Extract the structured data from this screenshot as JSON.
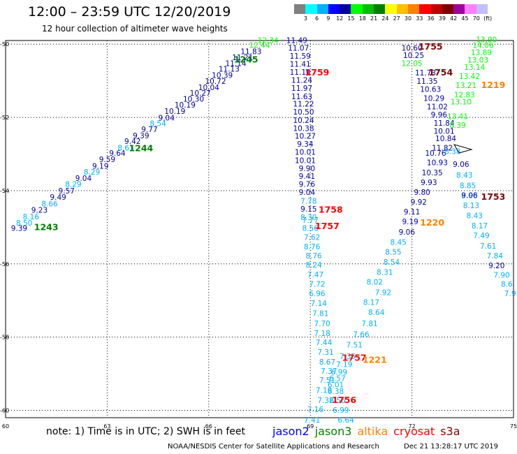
{
  "header": {
    "title": "12:00 – 23:59 UTC 12/20/2019",
    "subtitle": "12 hour collection of altimeter wave heights"
  },
  "colorbar": {
    "colors": [
      "#808080",
      "#00ffff",
      "#00b0ff",
      "#0000ff",
      "#0000a0",
      "#00ff00",
      "#00c000",
      "#008000",
      "#ffff00",
      "#ffc000",
      "#ff8000",
      "#ff0000",
      "#c00000",
      "#800000",
      "#a000a0",
      "#ff80ff",
      "#c0c0ff",
      "#ffffff"
    ],
    "labels": [
      "3",
      "6",
      "9",
      "12",
      "15",
      "18",
      "21",
      "24",
      "27",
      "30",
      "33",
      "36",
      "39",
      "42",
      "45",
      "70",
      "(ft)"
    ]
  },
  "axes": {
    "x_ticks": [
      "60",
      "63",
      "66",
      "69",
      "72",
      "75"
    ],
    "y_ticks": [
      "-50",
      "-52",
      "-54",
      "-56",
      "-58",
      "-60"
    ]
  },
  "note": "note: 1) Time is in UTC; 2) SWH is in feet",
  "legend": [
    {
      "name": "jason2",
      "color": "#0000ff"
    },
    {
      "name": "jason3",
      "color": "#008000"
    },
    {
      "name": "altika",
      "color": "#ff8000"
    },
    {
      "name": "cryosat",
      "color": "#ff0000"
    },
    {
      "name": "s3a",
      "color": "#800000"
    }
  ],
  "footer": {
    "credit": "NOAA/NESDIS Center for Satellite Applications and Research",
    "date": "Dec 21 13:28:17 UTC 2019"
  },
  "chart_data": {
    "type": "scatter",
    "xlim": [
      60,
      75
    ],
    "ylim": [
      -60.2,
      -49.9
    ],
    "grid": true,
    "colors": {
      "navy": "#0000a0",
      "blue": "#0000ff",
      "lightblue": "#00b0ff",
      "green": "#00c000",
      "lightgreen": "#00ff00",
      "darkgreen": "#008000",
      "orange": "#ff8000",
      "red": "#ff0000",
      "darkred": "#800000",
      "black": "#000000"
    },
    "time_labels": [
      {
        "x": 61.2,
        "y": -55.08,
        "text": "1243",
        "color": "darkgreen"
      },
      {
        "x": 64.0,
        "y": -52.92,
        "text": "1244",
        "color": "darkgreen"
      },
      {
        "x": 67.1,
        "y": -50.5,
        "text": "1245",
        "color": "darkgreen"
      },
      {
        "x": 69.2,
        "y": -50.85,
        "text": "1759",
        "color": "red"
      },
      {
        "x": 69.6,
        "y": -54.6,
        "text": "1758",
        "color": "red"
      },
      {
        "x": 69.5,
        "y": -55.05,
        "text": "1757",
        "color": "red"
      },
      {
        "x": 70.3,
        "y": -58.65,
        "text": "1757",
        "color": "red"
      },
      {
        "x": 70.0,
        "y": -59.8,
        "text": "1756",
        "color": "red"
      },
      {
        "x": 70.9,
        "y": -58.7,
        "text": "1221",
        "color": "orange"
      },
      {
        "x": 72.6,
        "y": -54.95,
        "text": "1220",
        "color": "orange"
      },
      {
        "x": 74.4,
        "y": -51.2,
        "text": "1219",
        "color": "orange"
      },
      {
        "x": 72.55,
        "y": -50.15,
        "text": "1755",
        "color": "darkred"
      },
      {
        "x": 72.85,
        "y": -50.85,
        "text": "1754",
        "color": "darkred"
      },
      {
        "x": 74.4,
        "y": -54.25,
        "text": "1753",
        "color": "darkred"
      }
    ],
    "points": [
      {
        "x": 60.4,
        "y": -55.1,
        "text": "9.39",
        "color": "navy"
      },
      {
        "x": 60.55,
        "y": -54.95,
        "text": "8.50",
        "color": "lightblue"
      },
      {
        "x": 60.75,
        "y": -54.78,
        "text": "8.16",
        "color": "lightblue"
      },
      {
        "x": 61.0,
        "y": -54.6,
        "text": "9.23",
        "color": "navy"
      },
      {
        "x": 61.3,
        "y": -54.43,
        "text": "8.66",
        "color": "lightblue"
      },
      {
        "x": 61.55,
        "y": -54.25,
        "text": "9.49",
        "color": "navy"
      },
      {
        "x": 61.8,
        "y": -54.08,
        "text": "9.57",
        "color": "navy"
      },
      {
        "x": 62.0,
        "y": -53.9,
        "text": "8.29",
        "color": "lightblue"
      },
      {
        "x": 62.3,
        "y": -53.73,
        "text": "9.04",
        "color": "navy"
      },
      {
        "x": 62.55,
        "y": -53.56,
        "text": "8.29",
        "color": "lightblue"
      },
      {
        "x": 62.8,
        "y": -53.4,
        "text": "9.19",
        "color": "navy"
      },
      {
        "x": 63.0,
        "y": -53.22,
        "text": "9.59",
        "color": "navy"
      },
      {
        "x": 63.3,
        "y": -53.05,
        "text": "9.64",
        "color": "navy"
      },
      {
        "x": 63.55,
        "y": -52.9,
        "text": "8.63",
        "color": "lightblue"
      },
      {
        "x": 63.75,
        "y": -52.72,
        "text": "9.42",
        "color": "navy"
      },
      {
        "x": 64.0,
        "y": -52.57,
        "text": "9.39",
        "color": "navy"
      },
      {
        "x": 64.25,
        "y": -52.4,
        "text": "9.77",
        "color": "navy"
      },
      {
        "x": 64.5,
        "y": -52.24,
        "text": "8.54",
        "color": "lightblue"
      },
      {
        "x": 64.75,
        "y": -52.08,
        "text": "9.04",
        "color": "navy"
      },
      {
        "x": 65.0,
        "y": -51.9,
        "text": "10.19",
        "color": "navy"
      },
      {
        "x": 65.3,
        "y": -51.73,
        "text": "10.19",
        "color": "navy"
      },
      {
        "x": 65.55,
        "y": -51.57,
        "text": "10.30",
        "color": "navy"
      },
      {
        "x": 65.75,
        "y": -51.41,
        "text": "10.27",
        "color": "navy"
      },
      {
        "x": 66.0,
        "y": -51.25,
        "text": "10.04",
        "color": "navy"
      },
      {
        "x": 66.2,
        "y": -51.08,
        "text": "10.72",
        "color": "navy"
      },
      {
        "x": 66.4,
        "y": -50.92,
        "text": "10.39",
        "color": "navy"
      },
      {
        "x": 66.6,
        "y": -50.75,
        "text": "11.13",
        "color": "navy"
      },
      {
        "x": 66.8,
        "y": -50.6,
        "text": "11.14",
        "color": "navy"
      },
      {
        "x": 67.0,
        "y": -50.43,
        "text": "11.21",
        "color": "navy"
      },
      {
        "x": 67.25,
        "y": -50.27,
        "text": "11.83",
        "color": "navy"
      },
      {
        "x": 67.5,
        "y": -50.1,
        "text": "12.44",
        "color": "lightgreen"
      },
      {
        "x": 67.75,
        "y": -49.97,
        "text": "12.34",
        "color": "lightgreen"
      },
      {
        "x": 68.6,
        "y": -49.97,
        "text": "11.49",
        "color": "navy"
      },
      {
        "x": 68.65,
        "y": -50.18,
        "text": "11.07",
        "color": "navy"
      },
      {
        "x": 68.7,
        "y": -50.4,
        "text": "11.59",
        "color": "navy"
      },
      {
        "x": 68.7,
        "y": -50.62,
        "text": "11.41",
        "color": "navy"
      },
      {
        "x": 68.7,
        "y": -50.83,
        "text": "11.10",
        "color": "navy"
      },
      {
        "x": 68.75,
        "y": -51.05,
        "text": "11.24",
        "color": "navy"
      },
      {
        "x": 68.75,
        "y": -51.27,
        "text": "11.97",
        "color": "navy"
      },
      {
        "x": 68.75,
        "y": -51.5,
        "text": "11.63",
        "color": "navy"
      },
      {
        "x": 68.8,
        "y": -51.7,
        "text": "11.22",
        "color": "navy"
      },
      {
        "x": 68.8,
        "y": -51.92,
        "text": "10.50",
        "color": "navy"
      },
      {
        "x": 68.8,
        "y": -52.15,
        "text": "10.24",
        "color": "navy"
      },
      {
        "x": 68.8,
        "y": -52.37,
        "text": "10.38",
        "color": "navy"
      },
      {
        "x": 68.85,
        "y": -52.58,
        "text": "10.27",
        "color": "navy"
      },
      {
        "x": 68.85,
        "y": -52.8,
        "text": "9.34",
        "color": "navy"
      },
      {
        "x": 68.85,
        "y": -53.02,
        "text": "10.01",
        "color": "navy"
      },
      {
        "x": 68.85,
        "y": -53.25,
        "text": "10.01",
        "color": "navy"
      },
      {
        "x": 68.9,
        "y": -53.47,
        "text": "9.90",
        "color": "navy"
      },
      {
        "x": 68.9,
        "y": -53.68,
        "text": "9.41",
        "color": "navy"
      },
      {
        "x": 68.9,
        "y": -53.9,
        "text": "9.76",
        "color": "navy"
      },
      {
        "x": 68.9,
        "y": -54.12,
        "text": "9.04",
        "color": "navy"
      },
      {
        "x": 68.95,
        "y": -54.35,
        "text": "7.78",
        "color": "lightblue"
      },
      {
        "x": 68.95,
        "y": -54.57,
        "text": "9.15",
        "color": "navy"
      },
      {
        "x": 68.95,
        "y": -54.8,
        "text": "8.30",
        "color": "lightblue"
      },
      {
        "x": 69.0,
        "y": -54.88,
        "text": "7.77",
        "color": "lightblue"
      },
      {
        "x": 69.0,
        "y": -55.1,
        "text": "8.56",
        "color": "lightblue"
      },
      {
        "x": 69.05,
        "y": -55.35,
        "text": "7.62",
        "color": "lightblue"
      },
      {
        "x": 69.05,
        "y": -55.6,
        "text": "8.76",
        "color": "lightblue"
      },
      {
        "x": 69.1,
        "y": -55.85,
        "text": "8.76",
        "color": "lightblue"
      },
      {
        "x": 69.1,
        "y": -56.1,
        "text": "8.24",
        "color": "lightblue"
      },
      {
        "x": 69.15,
        "y": -56.37,
        "text": "7.47",
        "color": "lightblue"
      },
      {
        "x": 69.2,
        "y": -56.62,
        "text": "7.72",
        "color": "lightblue"
      },
      {
        "x": 69.2,
        "y": -56.88,
        "text": "6.96",
        "color": "lightblue"
      },
      {
        "x": 69.25,
        "y": -57.15,
        "text": "7.14",
        "color": "lightblue"
      },
      {
        "x": 69.3,
        "y": -57.42,
        "text": "7.81",
        "color": "lightblue"
      },
      {
        "x": 69.35,
        "y": -57.7,
        "text": "7.70",
        "color": "lightblue"
      },
      {
        "x": 69.35,
        "y": -57.97,
        "text": "7.18",
        "color": "lightblue"
      },
      {
        "x": 69.4,
        "y": -58.22,
        "text": "7.44",
        "color": "lightblue"
      },
      {
        "x": 69.45,
        "y": -58.48,
        "text": "7.31",
        "color": "lightblue"
      },
      {
        "x": 69.5,
        "y": -58.75,
        "text": "8.67",
        "color": "lightblue"
      },
      {
        "x": 69.55,
        "y": -59.0,
        "text": "7.37",
        "color": "lightblue"
      },
      {
        "x": 69.5,
        "y": -59.25,
        "text": "7.51",
        "color": "lightblue"
      },
      {
        "x": 69.4,
        "y": -59.52,
        "text": "7.19",
        "color": "lightblue"
      },
      {
        "x": 69.45,
        "y": -59.8,
        "text": "7.32",
        "color": "lightblue"
      },
      {
        "x": 69.15,
        "y": -60.05,
        "text": "7.16",
        "color": "lightblue"
      },
      {
        "x": 69.05,
        "y": -60.33,
        "text": "7.41",
        "color": "lightblue"
      },
      {
        "x": 70.1,
        "y": -58.6,
        "text": "7.35",
        "color": "lightblue"
      },
      {
        "x": 70.0,
        "y": -58.82,
        "text": "7.19",
        "color": "lightblue"
      },
      {
        "x": 69.85,
        "y": -59.03,
        "text": "6.99",
        "color": "lightblue"
      },
      {
        "x": 69.8,
        "y": -59.2,
        "text": "6.57",
        "color": "lightblue"
      },
      {
        "x": 69.75,
        "y": -59.37,
        "text": "6.01",
        "color": "lightblue"
      },
      {
        "x": 69.75,
        "y": -59.55,
        "text": "6.38",
        "color": "lightblue"
      },
      {
        "x": 69.8,
        "y": -59.8,
        "text": "6.56",
        "color": "lightblue"
      },
      {
        "x": 69.9,
        "y": -60.07,
        "text": "6.99",
        "color": "lightblue"
      },
      {
        "x": 70.05,
        "y": -60.33,
        "text": "6.64",
        "color": "lightblue"
      },
      {
        "x": 70.3,
        "y": -58.28,
        "text": "7.51",
        "color": "lightblue"
      },
      {
        "x": 70.5,
        "y": -58.0,
        "text": "7.66",
        "color": "lightblue"
      },
      {
        "x": 70.75,
        "y": -57.7,
        "text": "7.81",
        "color": "lightblue"
      },
      {
        "x": 70.95,
        "y": -57.4,
        "text": "8.64",
        "color": "lightblue"
      },
      {
        "x": 70.8,
        "y": -57.12,
        "text": "8.17",
        "color": "lightblue"
      },
      {
        "x": 71.15,
        "y": -56.85,
        "text": "7.92",
        "color": "lightblue"
      },
      {
        "x": 70.9,
        "y": -56.57,
        "text": "8.02",
        "color": "lightblue"
      },
      {
        "x": 71.2,
        "y": -56.3,
        "text": "8.31",
        "color": "lightblue"
      },
      {
        "x": 71.4,
        "y": -56.02,
        "text": "8.54",
        "color": "lightblue"
      },
      {
        "x": 71.45,
        "y": -55.75,
        "text": "8.55",
        "color": "lightblue"
      },
      {
        "x": 71.6,
        "y": -55.48,
        "text": "8.45",
        "color": "lightblue"
      },
      {
        "x": 71.85,
        "y": -55.2,
        "text": "9.06",
        "color": "navy"
      },
      {
        "x": 71.95,
        "y": -54.92,
        "text": "9.19",
        "color": "navy"
      },
      {
        "x": 72.0,
        "y": -54.65,
        "text": "9.11",
        "color": "navy"
      },
      {
        "x": 72.2,
        "y": -54.38,
        "text": "9.92",
        "color": "navy"
      },
      {
        "x": 72.3,
        "y": -54.12,
        "text": "9.80",
        "color": "navy"
      },
      {
        "x": 72.5,
        "y": -53.85,
        "text": "9.93",
        "color": "navy"
      },
      {
        "x": 72.6,
        "y": -53.58,
        "text": "10.35",
        "color": "navy"
      },
      {
        "x": 72.75,
        "y": -53.3,
        "text": "10.93",
        "color": "navy"
      },
      {
        "x": 72.7,
        "y": -53.05,
        "text": "10.76",
        "color": "navy"
      },
      {
        "x": 72.9,
        "y": -52.9,
        "text": "11.82",
        "color": "navy"
      },
      {
        "x": 73.0,
        "y": -52.65,
        "text": "10.84",
        "color": "navy"
      },
      {
        "x": 72.95,
        "y": -52.45,
        "text": "10.01",
        "color": "navy"
      },
      {
        "x": 72.95,
        "y": -52.23,
        "text": "11.84",
        "color": "navy"
      },
      {
        "x": 72.8,
        "y": -52.0,
        "text": "9.96",
        "color": "navy"
      },
      {
        "x": 72.75,
        "y": -51.78,
        "text": "11.02",
        "color": "navy"
      },
      {
        "x": 72.65,
        "y": -51.55,
        "text": "10.29",
        "color": "navy"
      },
      {
        "x": 72.55,
        "y": -51.3,
        "text": "10.63",
        "color": "navy"
      },
      {
        "x": 72.45,
        "y": -51.08,
        "text": "11.35",
        "color": "navy"
      },
      {
        "x": 72.4,
        "y": -50.85,
        "text": "11.73",
        "color": "navy"
      },
      {
        "x": 72.0,
        "y": -50.6,
        "text": "12.05",
        "color": "lightgreen"
      },
      {
        "x": 72.05,
        "y": -50.38,
        "text": "10.25",
        "color": "navy"
      },
      {
        "x": 72.0,
        "y": -50.18,
        "text": "10.60",
        "color": "navy"
      },
      {
        "x": 73.35,
        "y": -52.05,
        "text": "13.41",
        "color": "lightgreen"
      },
      {
        "x": 73.45,
        "y": -51.65,
        "text": "13.10",
        "color": "lightgreen"
      },
      {
        "x": 73.55,
        "y": -51.45,
        "text": "12.83",
        "color": "lightgreen"
      },
      {
        "x": 73.6,
        "y": -51.2,
        "text": "13.21",
        "color": "lightgreen"
      },
      {
        "x": 73.7,
        "y": -50.95,
        "text": "13.42",
        "color": "lightgreen"
      },
      {
        "x": 73.85,
        "y": -50.7,
        "text": "13.14",
        "color": "lightgreen"
      },
      {
        "x": 73.95,
        "y": -50.5,
        "text": "13.03",
        "color": "lightgreen"
      },
      {
        "x": 74.05,
        "y": -50.3,
        "text": "13.89",
        "color": "lightgreen"
      },
      {
        "x": 74.1,
        "y": -50.1,
        "text": "14.06",
        "color": "lightgreen"
      },
      {
        "x": 74.2,
        "y": -49.95,
        "text": "13.90",
        "color": "lightgreen"
      },
      {
        "x": 73.35,
        "y": -52.28,
        "text": "8.39",
        "color": "lightgreen"
      },
      {
        "x": 73.2,
        "y": -53.0,
        "text": "8.38",
        "color": "lightblue"
      },
      {
        "x": 73.45,
        "y": -53.35,
        "text": "9.06",
        "color": "navy"
      },
      {
        "x": 73.55,
        "y": -53.65,
        "text": "8.43",
        "color": "lightblue"
      },
      {
        "x": 73.65,
        "y": -53.93,
        "text": "8.85",
        "color": "lightblue"
      },
      {
        "x": 73.7,
        "y": -54.2,
        "text": "8.98",
        "color": "lightblue"
      },
      {
        "x": 73.7,
        "y": -54.2,
        "text": "9.06",
        "color": "navy"
      },
      {
        "x": 73.75,
        "y": -54.48,
        "text": "8.13",
        "color": "lightblue"
      },
      {
        "x": 73.85,
        "y": -54.75,
        "text": "8.43",
        "color": "lightblue"
      },
      {
        "x": 74.0,
        "y": -55.03,
        "text": "8.17",
        "color": "lightblue"
      },
      {
        "x": 74.05,
        "y": -55.3,
        "text": "7.49",
        "color": "lightblue"
      },
      {
        "x": 74.25,
        "y": -55.58,
        "text": "7.61",
        "color": "lightblue"
      },
      {
        "x": 74.45,
        "y": -55.85,
        "text": "7.84",
        "color": "lightblue"
      },
      {
        "x": 74.5,
        "y": -56.12,
        "text": "9.20",
        "color": "navy"
      },
      {
        "x": 74.65,
        "y": -56.38,
        "text": "7.90",
        "color": "lightblue"
      },
      {
        "x": 74.8,
        "y": -56.62,
        "text": "8.6",
        "color": "lightblue"
      },
      {
        "x": 74.9,
        "y": -56.88,
        "text": "7.9",
        "color": "lightblue"
      }
    ]
  }
}
